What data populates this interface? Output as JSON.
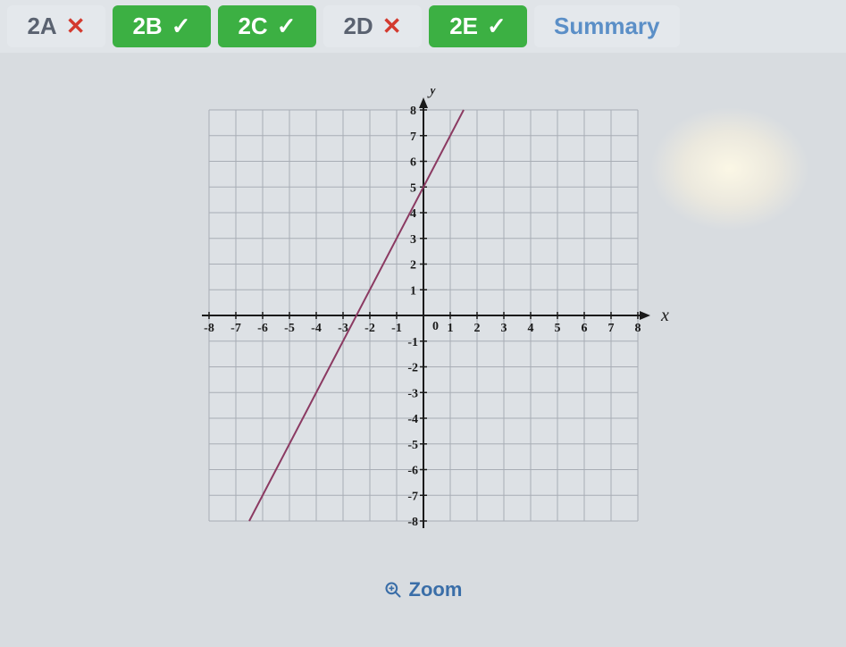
{
  "tabs": [
    {
      "label": "2A",
      "status": "wrong",
      "mark": "✕"
    },
    {
      "label": "2B",
      "status": "correct",
      "mark": "✓"
    },
    {
      "label": "2C",
      "status": "correct",
      "mark": "✓"
    },
    {
      "label": "2D",
      "status": "wrong",
      "mark": "✕"
    },
    {
      "label": "2E",
      "status": "correct",
      "mark": "✓"
    },
    {
      "label": "Summary",
      "status": "summary",
      "mark": ""
    }
  ],
  "tab_colors": {
    "wrong_bg": "#e4e8ec",
    "wrong_fg": "#5a6270",
    "wrong_mark": "#d33a2f",
    "correct_bg": "#3cb043",
    "correct_fg": "#ffffff",
    "summary_bg": "#e4e8ec",
    "summary_fg": "#5b8fc7"
  },
  "chart": {
    "type": "line",
    "xlabel": "x",
    "ylabel": "y",
    "xlim": [
      -8,
      8
    ],
    "ylim": [
      -8,
      8
    ],
    "xtick_step": 1,
    "ytick_step": 1,
    "xticks": [
      -8,
      -7,
      -6,
      -5,
      -4,
      -3,
      -2,
      -1,
      0,
      1,
      2,
      3,
      4,
      5,
      6,
      7,
      8
    ],
    "yticks": [
      -8,
      -7,
      -6,
      -5,
      -4,
      -3,
      -2,
      -1,
      1,
      2,
      3,
      4,
      5,
      6,
      7,
      8
    ],
    "grid_visible_xrange": [
      -8,
      8
    ],
    "grid_visible_yrange": [
      -8,
      8
    ],
    "background_color": "#d8dce0",
    "plot_bg_color": "#dde1e5",
    "grid_color": "#a8adb5",
    "axis_color": "#1a1a1a",
    "tick_label_color": "#1a1a1a",
    "tick_fontsize": 14,
    "axis_label_fontsize": 20,
    "axis_label_style": "italic",
    "line": {
      "color": "#8b3a62",
      "width": 2,
      "slope": 2,
      "intercept": 5,
      "x_start": -6.5,
      "x_end": 1.5,
      "y_start": -8,
      "y_end": 8
    },
    "arrowheads": true
  },
  "zoom_label": "Zoom"
}
